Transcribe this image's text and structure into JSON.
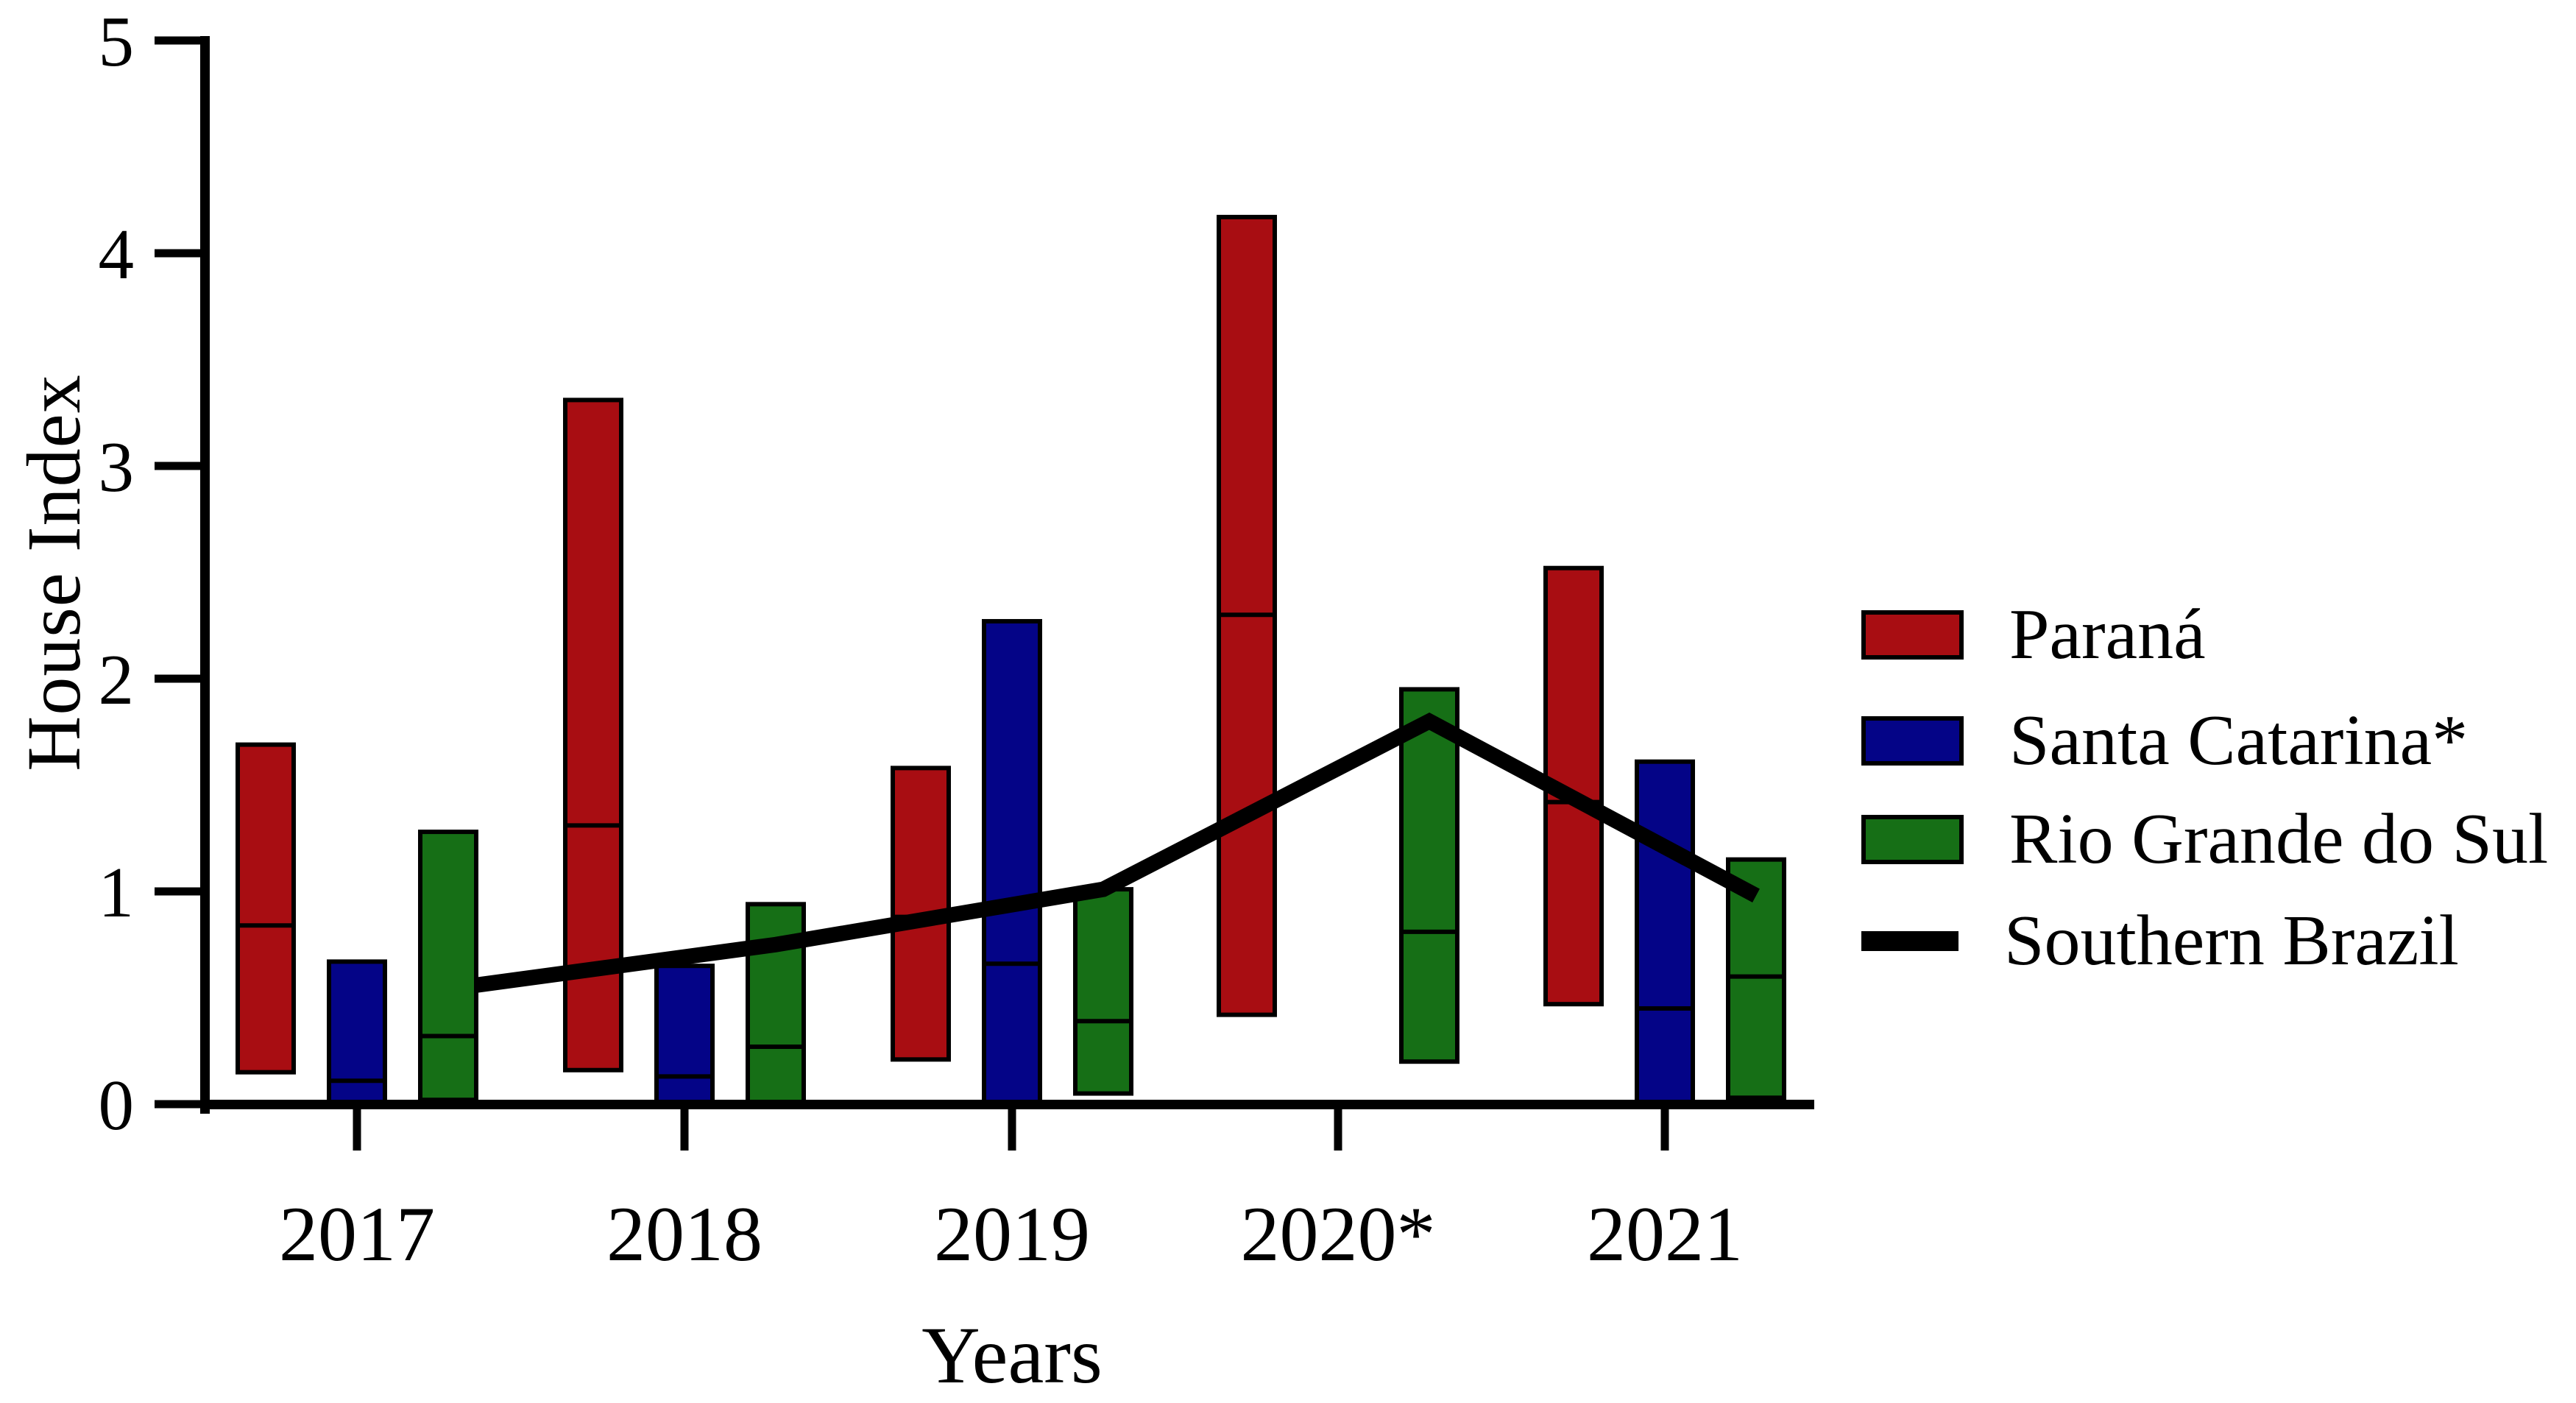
{
  "figure": {
    "background": "#ffffff",
    "axis_color": "#000000"
  },
  "chart_data": {
    "type": "bar",
    "subtype": "floating-range-bars-with-line-overlay",
    "title": "",
    "xlabel": "Years",
    "ylabel": "House Index",
    "ylim": [
      0,
      5
    ],
    "yticks": [
      0,
      1,
      2,
      3,
      4,
      5
    ],
    "ytick_labels": [
      "0",
      "1",
      "2",
      "3",
      "4",
      "5"
    ],
    "categories": [
      "2017",
      "2018",
      "2019",
      "2020*",
      "2021"
    ],
    "grid": false,
    "legend_position": "right",
    "series": [
      {
        "name": "Paraná",
        "type": "floating-bar",
        "color": "#A80D12",
        "bars": [
          {
            "min": 0.15,
            "median": 0.84,
            "max": 1.69
          },
          {
            "min": 0.16,
            "median": 1.31,
            "max": 3.31
          },
          {
            "min": 0.21,
            "median": 0.88,
            "max": 1.58
          },
          {
            "min": 0.42,
            "median": 2.3,
            "max": 4.17
          },
          {
            "min": 0.47,
            "median": 1.42,
            "max": 2.52
          }
        ]
      },
      {
        "name": "Santa Catarina*",
        "type": "floating-bar",
        "color": "#040487",
        "bars": [
          {
            "min": 0.0,
            "median": 0.11,
            "max": 0.67
          },
          {
            "min": 0.0,
            "median": 0.13,
            "max": 0.65
          },
          {
            "min": 0.0,
            "median": 0.66,
            "max": 2.27
          },
          null,
          {
            "min": 0.0,
            "median": 0.45,
            "max": 1.61
          }
        ]
      },
      {
        "name": "Rio Grande do Sul",
        "type": "floating-bar",
        "color": "#166F16",
        "bars": [
          {
            "min": 0.02,
            "median": 0.32,
            "max": 1.28
          },
          {
            "min": 0.0,
            "median": 0.27,
            "max": 0.94
          },
          {
            "min": 0.05,
            "median": 0.39,
            "max": 1.01
          },
          {
            "min": 0.2,
            "median": 0.81,
            "max": 1.95
          },
          {
            "min": 0.03,
            "median": 0.6,
            "max": 1.15
          }
        ]
      },
      {
        "name": "Southern Brazil",
        "type": "line",
        "color": "#000000",
        "values": [
          0.56,
          0.75,
          1.01,
          1.8,
          0.98
        ]
      }
    ]
  }
}
